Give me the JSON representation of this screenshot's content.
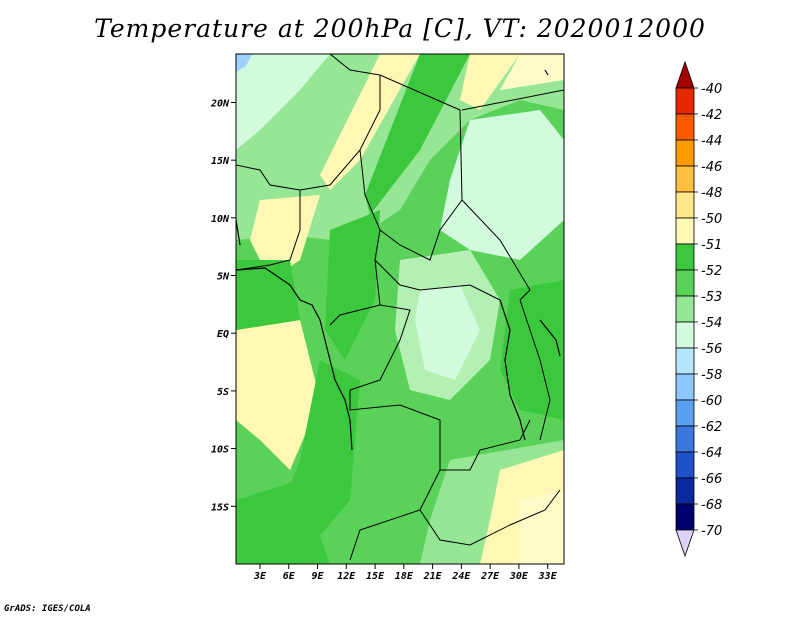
{
  "title": "Temperature at 200hPa [C], VT: 2020012000",
  "credit": "GrADS: IGES/COLA",
  "map": {
    "lat_labels": [
      "20N",
      "15N",
      "10N",
      "5N",
      "EQ",
      "5S",
      "10S",
      "15S"
    ],
    "lon_labels": [
      "3E",
      "6E",
      "9E",
      "12E",
      "15E",
      "18E",
      "21E",
      "24E",
      "27E",
      "30E",
      "33E"
    ],
    "lat_values": [
      20,
      15,
      10,
      5,
      0,
      -5,
      -10,
      -15
    ],
    "lon_values": [
      3,
      6,
      9,
      12,
      15,
      18,
      21,
      24,
      27,
      30,
      33
    ]
  },
  "colorbar": {
    "labels": [
      "-40",
      "-42",
      "-44",
      "-46",
      "-48",
      "-50",
      "-51",
      "-52",
      "-53",
      "-54",
      "-56",
      "-58",
      "-60",
      "-62",
      "-64",
      "-66",
      "-68",
      "-70"
    ],
    "colors": [
      "#a50000",
      "#e62800",
      "#ff5a00",
      "#ff9b00",
      "#ffbf40",
      "#ffe78c",
      "#fff7b4",
      "#3cc83c",
      "#5ad25a",
      "#96e696",
      "#d2fadc",
      "#b4e6ff",
      "#8cc8ff",
      "#5aa0f0",
      "#3c78dc",
      "#1e50c8",
      "#0a28a0",
      "#00006e",
      "#dcd2f5"
    ]
  },
  "colors": {
    "dark_green": "#3cc83c",
    "mid_green": "#5ad25a",
    "light_green": "#96e696",
    "pale_green": "#b4f0b4",
    "very_pale": "#d2fadc",
    "yellow": "#fff7b4",
    "pale_yellow": "#fffac8",
    "blue": "#a0d2ff"
  }
}
